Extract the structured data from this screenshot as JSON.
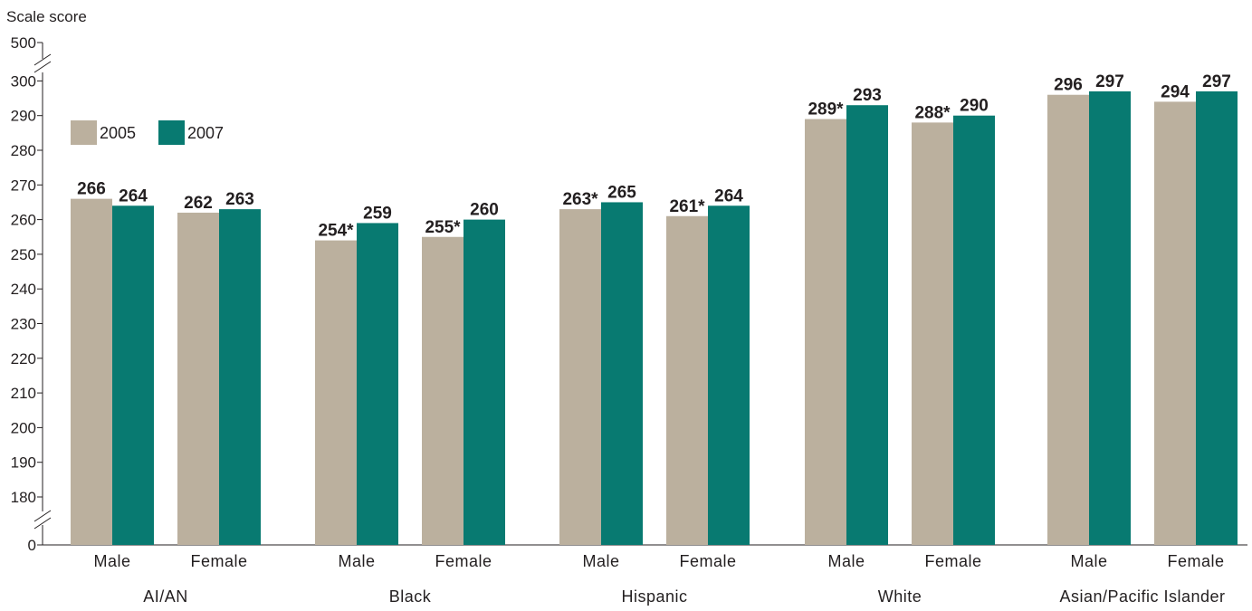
{
  "chart_data": {
    "type": "bar",
    "ylabel": "Scale score",
    "y_ticks": [
      "500",
      "300",
      "290",
      "280",
      "270",
      "260",
      "250",
      "240",
      "230",
      "220",
      "210",
      "200",
      "190",
      "180",
      "0"
    ],
    "ylim": [
      180,
      300
    ],
    "axis_break": true,
    "legend": {
      "position": "top-left"
    },
    "groups": [
      "AI/AN",
      "Black",
      "Hispanic",
      "White",
      "Asian/Pacific Islander"
    ],
    "categories": [
      "Male",
      "Female",
      "Male",
      "Female",
      "Male",
      "Female",
      "Male",
      "Female",
      "Male",
      "Female"
    ],
    "series": [
      {
        "name": "2005",
        "color": "#bbb09e",
        "values": [
          266,
          262,
          254,
          255,
          263,
          261,
          289,
          288,
          296,
          294
        ],
        "labels": [
          "266",
          "262",
          "254*",
          "255*",
          "263*",
          "261*",
          "289*",
          "288*",
          "296",
          "294"
        ]
      },
      {
        "name": "2007",
        "color": "#087a71",
        "values": [
          264,
          263,
          259,
          260,
          265,
          264,
          293,
          290,
          297,
          297
        ],
        "labels": [
          "264",
          "263",
          "259",
          "260",
          "265",
          "264",
          "293",
          "290",
          "297",
          "297"
        ]
      }
    ]
  }
}
